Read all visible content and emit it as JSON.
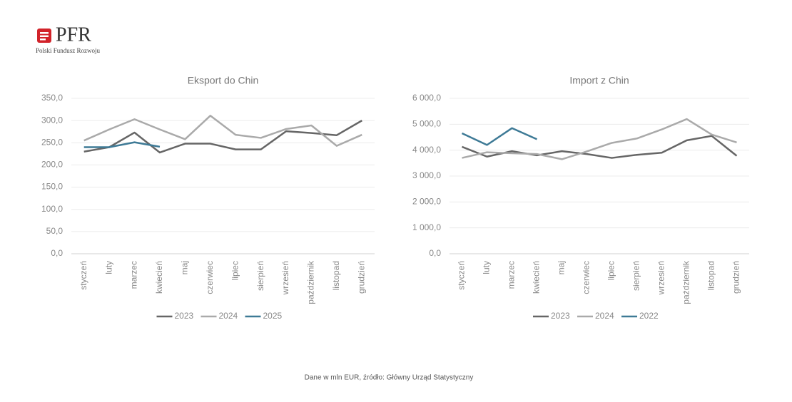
{
  "header": {
    "logo": "PFR",
    "tagline": "Polski Fundusz Rozwoju"
  },
  "footer": "Dane w mln EUR, źródło: Główny Urząd Statystyczny",
  "chart_data": [
    {
      "type": "line",
      "title": "Eksport do Chin",
      "categories": [
        "styczeń",
        "luty",
        "marzec",
        "kwiecień",
        "maj",
        "czerwiec",
        "lipiec",
        "sierpień",
        "wrzesień",
        "październik",
        "listopad",
        "grudzień"
      ],
      "series": [
        {
          "name": "2023",
          "color": "#666666",
          "values": [
            230,
            240,
            273,
            228,
            248,
            248,
            235,
            235,
            276,
            272,
            267,
            300
          ]
        },
        {
          "name": "2024",
          "color": "#aaaaaa",
          "values": [
            255,
            280,
            303,
            280,
            258,
            311,
            268,
            261,
            281,
            289,
            243,
            268
          ]
        },
        {
          "name": "2025",
          "color": "#3e7a96",
          "values": [
            240,
            240,
            251,
            241,
            null,
            null,
            null,
            null,
            null,
            null,
            null,
            null
          ]
        }
      ],
      "ylim": [
        0,
        350
      ],
      "yticks": [
        {
          "value": 0,
          "label": "0,0"
        },
        {
          "value": 50,
          "label": "50,0"
        },
        {
          "value": 100,
          "label": "100,0"
        },
        {
          "value": 150,
          "label": "150,0"
        },
        {
          "value": 200,
          "label": "200,0"
        },
        {
          "value": 250,
          "label": "250,0"
        },
        {
          "value": 300,
          "label": "300,0"
        },
        {
          "value": 350,
          "label": "350,0"
        }
      ],
      "grid": true,
      "legend": "bottom"
    },
    {
      "type": "line",
      "title": "Import z Chin",
      "categories": [
        "styczeń",
        "luty",
        "marzec",
        "kwiecień",
        "maj",
        "czerwiec",
        "lipiec",
        "sierpień",
        "wrzesień",
        "październik",
        "listopad",
        "grudzień"
      ],
      "series": [
        {
          "name": "2023",
          "color": "#666666",
          "values": [
            4130,
            3750,
            3960,
            3800,
            3960,
            3850,
            3700,
            3820,
            3900,
            4380,
            4550,
            3780
          ]
        },
        {
          "name": "2024",
          "color": "#aaaaaa",
          "values": [
            3700,
            3920,
            3880,
            3850,
            3650,
            3950,
            4280,
            4450,
            4800,
            5200,
            4600,
            4300
          ]
        },
        {
          "name": "2022",
          "color": "#3e7a96",
          "values": [
            4650,
            4200,
            4850,
            4420,
            null,
            null,
            null,
            null,
            null,
            null,
            null,
            null
          ]
        }
      ],
      "ylim": [
        0,
        6000
      ],
      "yticks": [
        {
          "value": 0,
          "label": "0,0"
        },
        {
          "value": 1000,
          "label": "1 000,0"
        },
        {
          "value": 2000,
          "label": "2 000,0"
        },
        {
          "value": 3000,
          "label": "3 000,0"
        },
        {
          "value": 4000,
          "label": "4 000,0"
        },
        {
          "value": 5000,
          "label": "5 000,0"
        },
        {
          "value": 6000,
          "label": "6 000,0"
        }
      ],
      "grid": true,
      "legend": "bottom"
    }
  ]
}
